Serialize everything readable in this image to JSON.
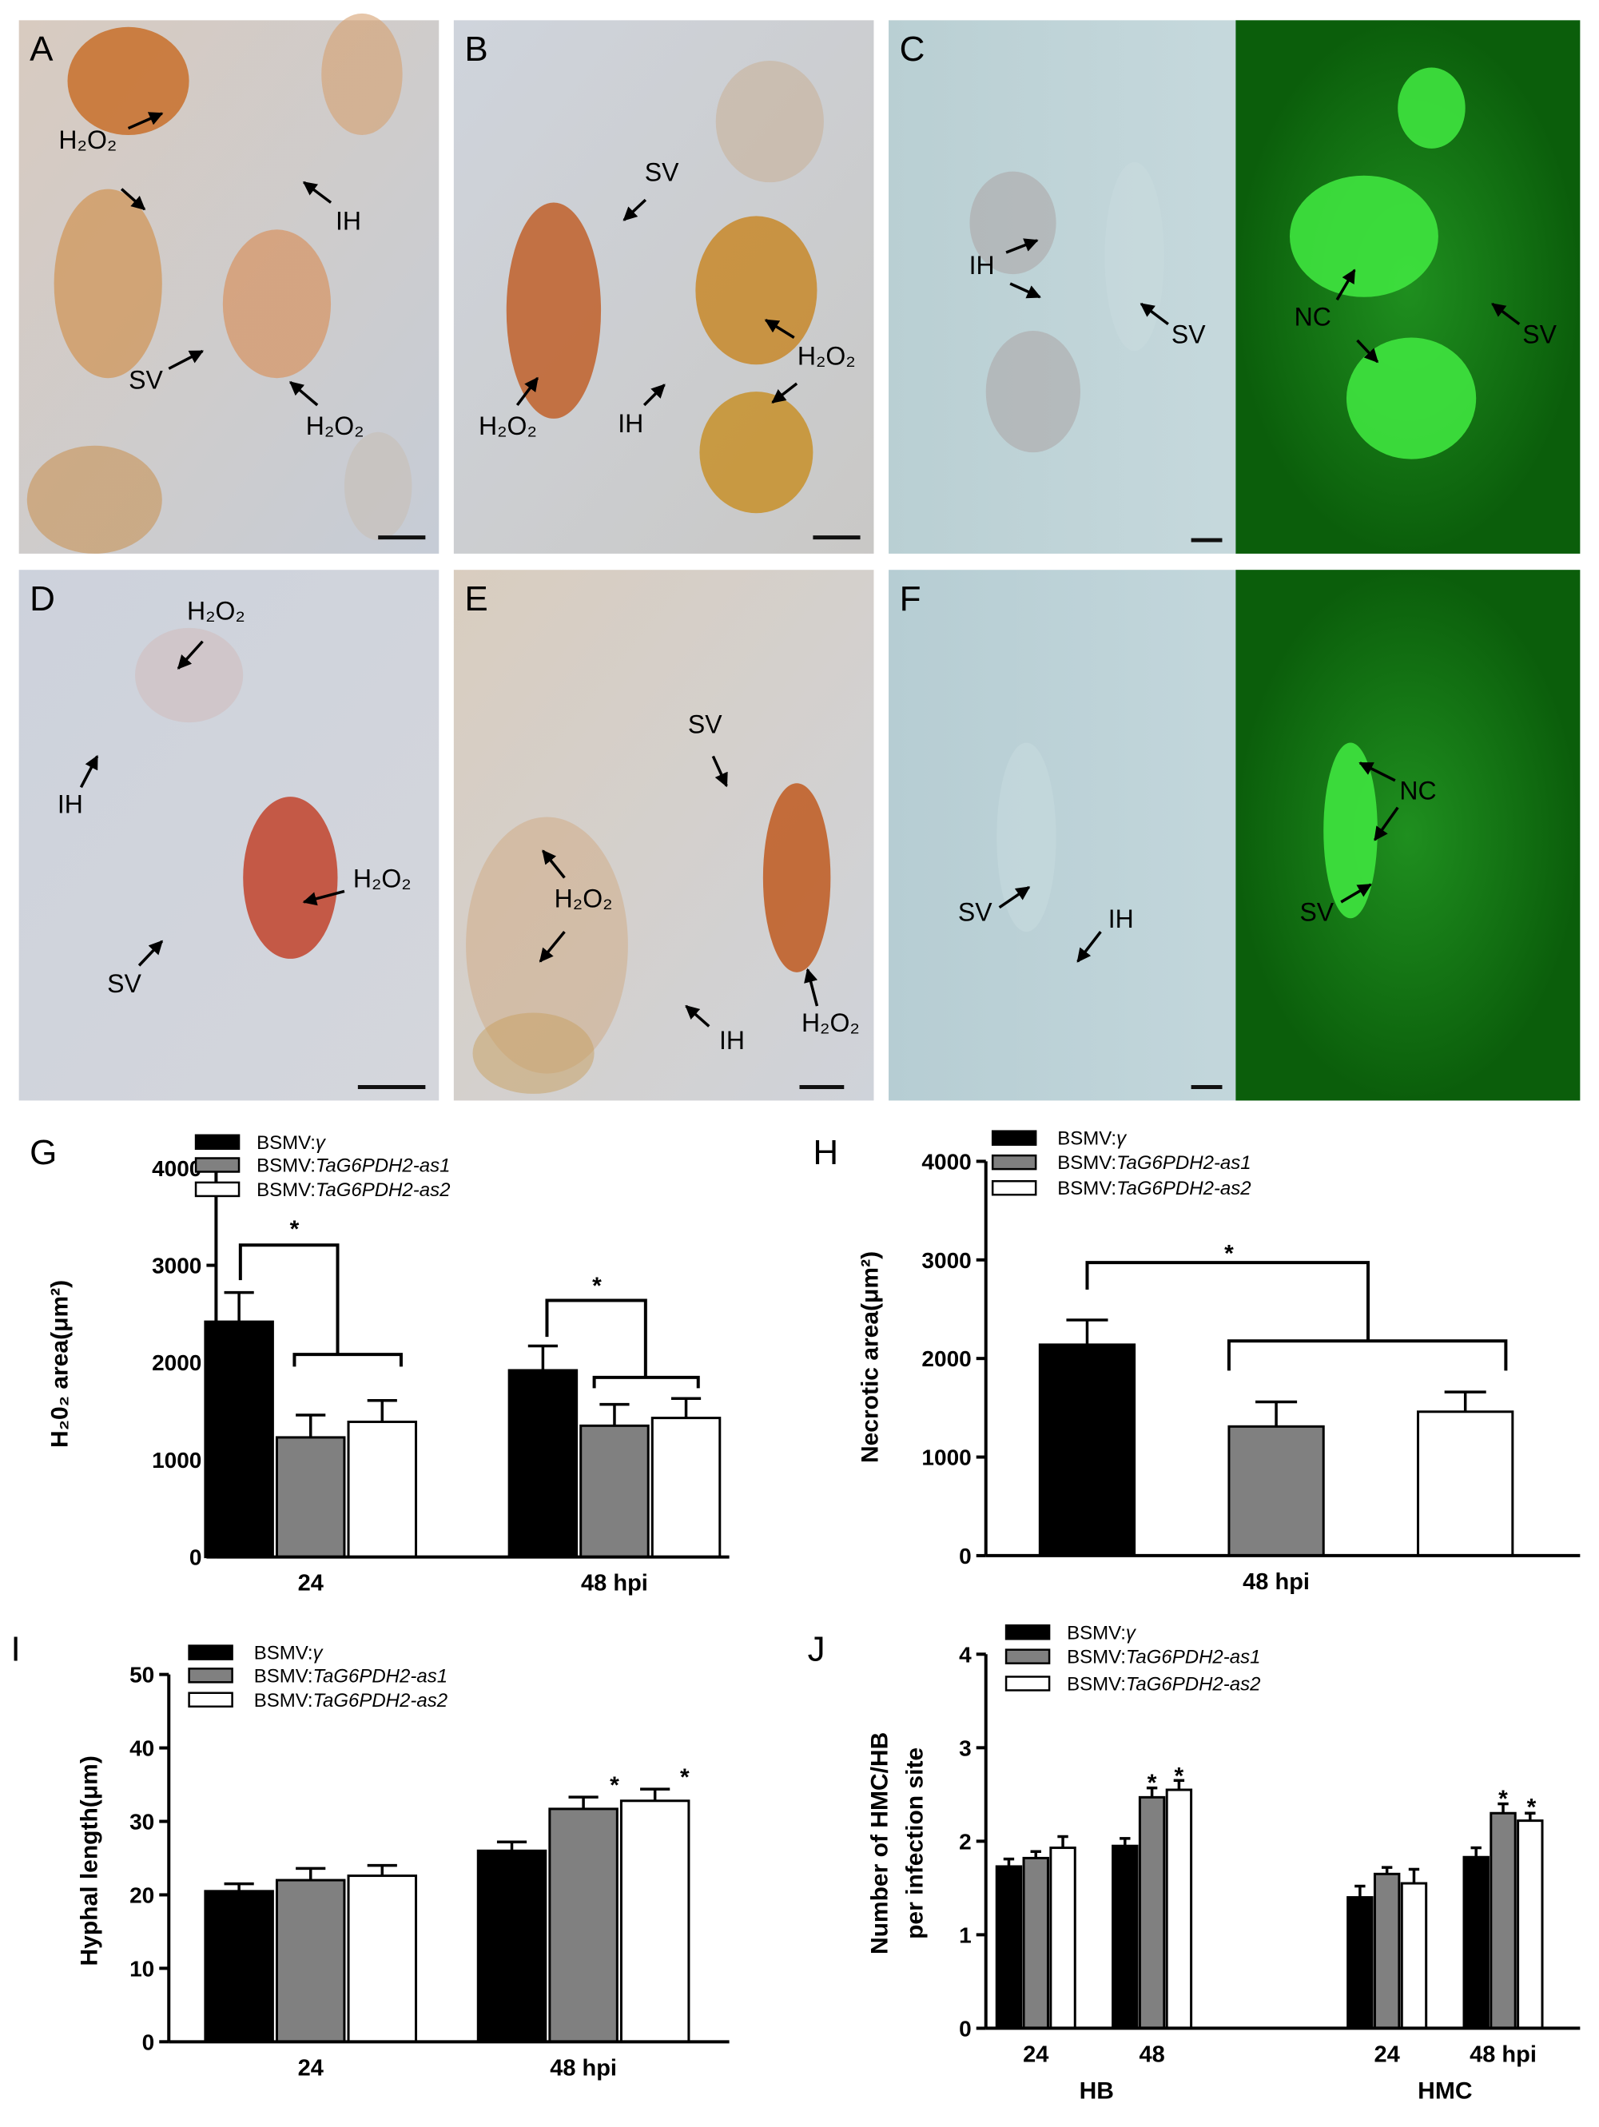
{
  "panels": [
    {
      "letter": "A",
      "labels": [
        "H₂O₂",
        "IH",
        "SV",
        "H₂O₂"
      ]
    },
    {
      "letter": "B",
      "labels": [
        "SV",
        "H₂O₂",
        "H₂O₂",
        "IH"
      ]
    },
    {
      "letter": "C",
      "labels": [
        "IH",
        "SV",
        "NC",
        "SV"
      ]
    },
    {
      "letter": "D",
      "labels": [
        "H₂O₂",
        "IH",
        "SV",
        "H₂O₂"
      ]
    },
    {
      "letter": "E",
      "labels": [
        "SV",
        "H₂O₂",
        "IH",
        "H₂O₂"
      ]
    },
    {
      "letter": "F",
      "labels": [
        "SV",
        "IH",
        "NC",
        "SV"
      ]
    }
  ],
  "chart_data": [
    {
      "type": "bar",
      "label": "G",
      "ylabel": "H₂0₂ area(μm²)",
      "categories": [
        "24",
        "48 hpi"
      ],
      "series": [
        {
          "name": "BSMV:γ",
          "color": "#000000",
          "values": [
            2420,
            1920
          ],
          "errors": [
            300,
            250
          ]
        },
        {
          "name": "BSMV:TaG6PDH2-as1",
          "color": "#808080",
          "values": [
            1230,
            1350
          ],
          "errors": [
            230,
            220
          ]
        },
        {
          "name": "BSMV:TaG6PDH2-as2",
          "color": "#ffffff",
          "values": [
            1390,
            1430
          ],
          "errors": [
            220,
            200
          ]
        }
      ],
      "ylim": [
        0,
        4000
      ],
      "yticks": [
        0,
        1000,
        2000,
        3000,
        4000
      ],
      "annotations": [
        "*",
        "*"
      ]
    },
    {
      "type": "bar",
      "label": "H",
      "ylabel": "Necrotic area(μm²)",
      "categories": [
        "48 hpi"
      ],
      "series": [
        {
          "name": "BSMV:γ",
          "color": "#000000",
          "values": [
            2140
          ],
          "errors": [
            250
          ]
        },
        {
          "name": "BSMV:TaG6PDH2-as1",
          "color": "#808080",
          "values": [
            1310
          ],
          "errors": [
            250
          ]
        },
        {
          "name": "BSMV:TaG6PDH2-as2",
          "color": "#ffffff",
          "values": [
            1460
          ],
          "errors": [
            200
          ]
        }
      ],
      "ylim": [
        0,
        4000
      ],
      "yticks": [
        0,
        1000,
        2000,
        3000,
        4000
      ],
      "annotations": [
        "*"
      ]
    },
    {
      "type": "bar",
      "label": "I",
      "ylabel": "Hyphal length(μm)",
      "categories": [
        "24",
        "48 hpi"
      ],
      "series": [
        {
          "name": "BSMV:γ",
          "color": "#000000",
          "values": [
            20.5,
            26
          ],
          "errors": [
            1.0,
            1.2
          ]
        },
        {
          "name": "BSMV:TaG6PDH2-as1",
          "color": "#808080",
          "values": [
            22,
            31.7
          ],
          "errors": [
            1.6,
            1.6
          ]
        },
        {
          "name": "BSMV:TaG6PDH2-as2",
          "color": "#ffffff",
          "values": [
            22.6,
            32.8
          ],
          "errors": [
            1.4,
            1.6
          ]
        }
      ],
      "ylim": [
        0,
        50
      ],
      "yticks": [
        0,
        10,
        20,
        30,
        40,
        50
      ],
      "annotations": [
        "*",
        "*"
      ]
    },
    {
      "type": "bar",
      "label": "J",
      "ylabel": [
        "Number of HMC/HB",
        "per infection site"
      ],
      "categories": [
        "24",
        "48",
        "24",
        "48 hpi"
      ],
      "groups": [
        "HB",
        "HMC"
      ],
      "series": [
        {
          "name": "BSMV:γ",
          "color": "#000000",
          "values": [
            1.73,
            1.95,
            1.4,
            1.83
          ],
          "errors": [
            0.08,
            0.08,
            0.12,
            0.1
          ]
        },
        {
          "name": "BSMV:TaG6PDH2-as1",
          "color": "#808080",
          "values": [
            1.82,
            2.47,
            1.65,
            2.3
          ],
          "errors": [
            0.07,
            0.1,
            0.07,
            0.1
          ]
        },
        {
          "name": "BSMV:TaG6PDH2-as2",
          "color": "#ffffff",
          "values": [
            1.93,
            2.55,
            1.55,
            2.22
          ],
          "errors": [
            0.12,
            0.1,
            0.15,
            0.08
          ]
        }
      ],
      "ylim": [
        0,
        4
      ],
      "yticks": [
        0,
        1,
        2,
        3,
        4
      ],
      "annotations": [
        "*",
        "*",
        "*",
        "*"
      ]
    }
  ]
}
